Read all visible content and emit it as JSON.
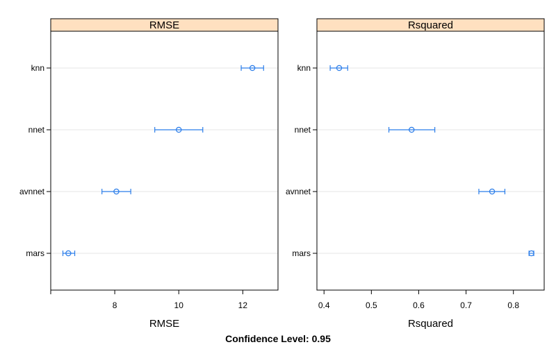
{
  "chart_data": {
    "type": "dotplot-with-error-bars",
    "footer": "Confidence Level: 0.95",
    "categories": [
      "knn",
      "nnet",
      "avnnet",
      "mars"
    ],
    "colors": {
      "strip_bg": "#ffe0c0",
      "series": "#2b7de9",
      "gridline": "#e6e6e6",
      "frame": "#000000"
    },
    "grid": true,
    "panels": [
      {
        "title": "RMSE",
        "xlabel": "RMSE",
        "xlim": [
          6.0,
          13.1
        ],
        "xticks": [
          6,
          8,
          10,
          12
        ],
        "xtick_labels": [
          "",
          "8",
          "10",
          "12"
        ],
        "points": [
          {
            "category": "knn",
            "value": 12.3,
            "lower": 11.95,
            "upper": 12.65
          },
          {
            "category": "nnet",
            "value": 10.0,
            "lower": 9.25,
            "upper": 10.75
          },
          {
            "category": "avnnet",
            "value": 8.05,
            "lower": 7.6,
            "upper": 8.5
          },
          {
            "category": "mars",
            "value": 6.55,
            "lower": 6.38,
            "upper": 6.75
          }
        ]
      },
      {
        "title": "Rsquared",
        "xlabel": "Rsquared",
        "xlim": [
          0.385,
          0.865
        ],
        "xticks": [
          0.4,
          0.5,
          0.6,
          0.7,
          0.8
        ],
        "xtick_labels": [
          "0.4",
          "0.5",
          "0.6",
          "0.7",
          "0.8"
        ],
        "points": [
          {
            "category": "knn",
            "value": 0.432,
            "lower": 0.413,
            "upper": 0.45
          },
          {
            "category": "nnet",
            "value": 0.585,
            "lower": 0.537,
            "upper": 0.634
          },
          {
            "category": "avnnet",
            "value": 0.755,
            "lower": 0.727,
            "upper": 0.782
          },
          {
            "category": "mars",
            "value": 0.838,
            "lower": 0.833,
            "upper": 0.843
          }
        ]
      }
    ]
  }
}
